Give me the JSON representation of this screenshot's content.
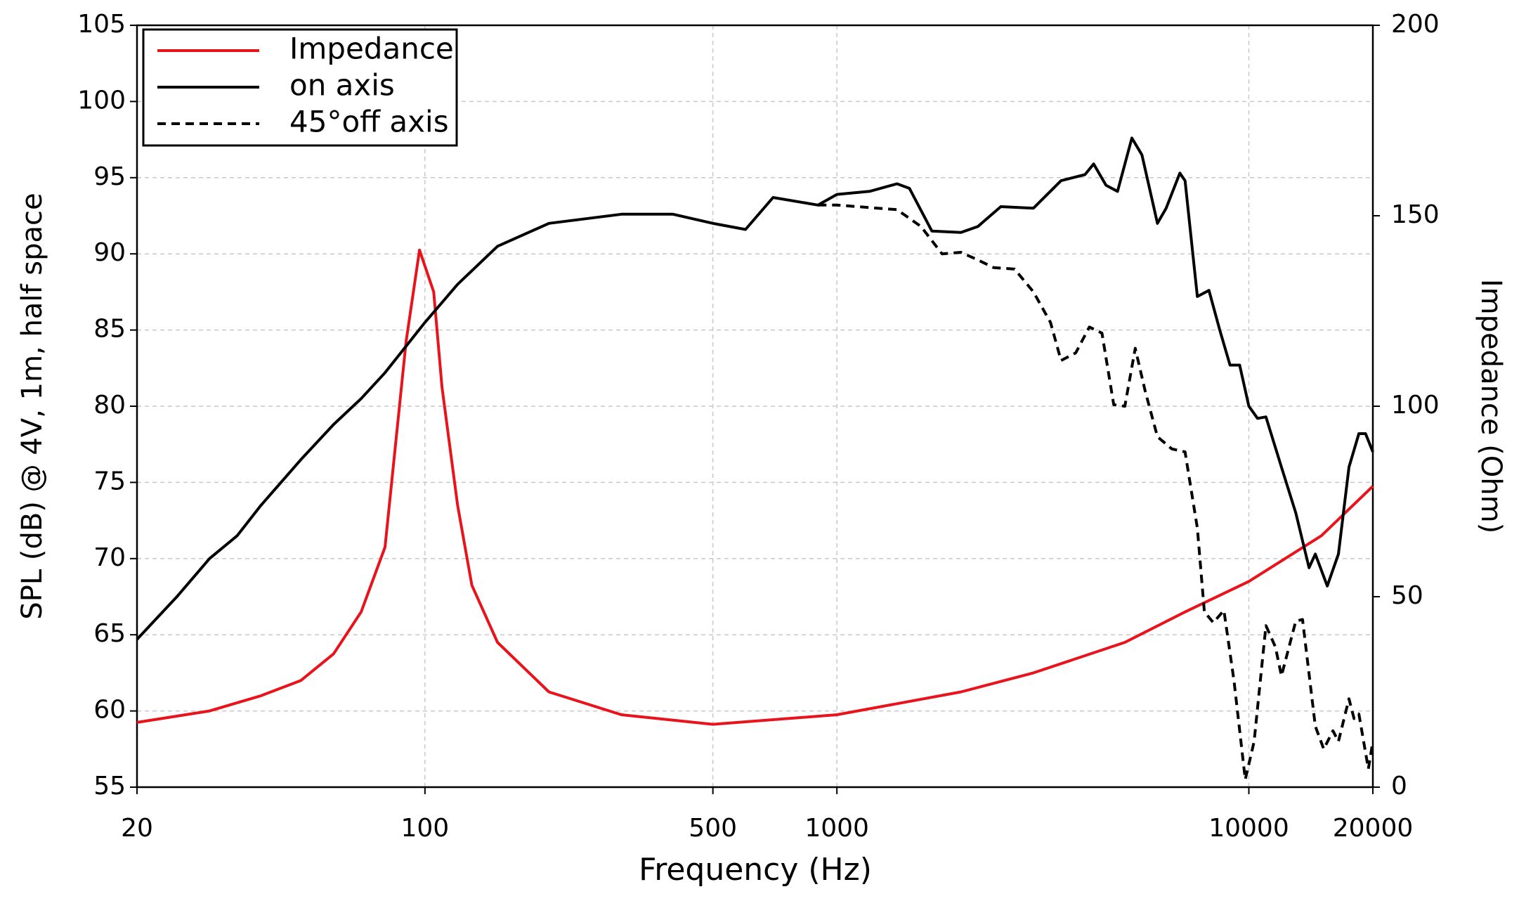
{
  "chart_data": {
    "type": "line",
    "x_label": "Frequency (Hz)",
    "y_label": "SPL (dB) @ 4V, 1m, half space",
    "y2_label": "Impedance (Ohm)",
    "xscale": "log",
    "xlim": [
      20,
      20000
    ],
    "xticks": [
      20,
      100,
      500,
      1000,
      10000,
      20000
    ],
    "ylim": [
      55,
      105
    ],
    "yticks": [
      55,
      60,
      65,
      70,
      75,
      80,
      85,
      90,
      95,
      100,
      105
    ],
    "y2lim": [
      0,
      200
    ],
    "y2ticks": [
      0,
      50,
      100,
      150,
      200
    ],
    "grid": true,
    "legend": "upper left",
    "series": [
      {
        "name": "Impedance",
        "color": "#e8131b",
        "style": "solid",
        "axis": "y2",
        "x": [
          20,
          30,
          40,
          50,
          60,
          70,
          80,
          90,
          97,
          105,
          110,
          120,
          130,
          150,
          200,
          300,
          500,
          1000,
          2000,
          3000,
          5000,
          7000,
          10000,
          15000,
          20000
        ],
        "values": [
          17,
          20,
          24,
          28,
          35,
          46,
          63,
          117,
          141,
          130,
          105,
          74,
          53,
          38,
          25,
          19,
          16.5,
          19,
          25,
          30,
          38,
          46,
          54,
          66,
          79
        ]
      },
      {
        "name": "on axis",
        "color": "#000000",
        "style": "solid",
        "x": [
          20,
          25,
          30,
          35,
          40,
          50,
          60,
          70,
          80,
          100,
          120,
          150,
          200,
          300,
          400,
          500,
          600,
          700,
          900,
          1000,
          1200,
          1400,
          1500,
          1700,
          2000,
          2200,
          2500,
          3000,
          3500,
          4000,
          4200,
          4500,
          4800,
          5200,
          5500,
          6000,
          6300,
          6800,
          7000,
          7500,
          8000,
          8500,
          9000,
          9500,
          10000,
          10500,
          11000,
          12000,
          13000,
          14000,
          14500,
          15500,
          16500,
          17500,
          18500,
          19200,
          20000
        ],
        "values": [
          64.7,
          67.5,
          70,
          71.5,
          73.5,
          76.5,
          78.8,
          80.5,
          82.2,
          85.5,
          88,
          90.5,
          92,
          92.6,
          92.6,
          92,
          91.6,
          93.7,
          93.2,
          93.9,
          94.1,
          94.6,
          94.3,
          91.5,
          91.4,
          91.8,
          93.1,
          93,
          94.8,
          95.2,
          95.9,
          94.5,
          94.1,
          97.6,
          96.5,
          92,
          93,
          95.3,
          94.8,
          87.2,
          87.6,
          85,
          82.7,
          82.7,
          80,
          79.2,
          79.3,
          76,
          73,
          69.4,
          70.3,
          68.2,
          70.3,
          76,
          78.2,
          78.2,
          77
        ]
      },
      {
        "name": "45°off axis",
        "color": "#000000",
        "style": "dashed",
        "x": [
          900,
          1000,
          1400,
          1600,
          1800,
          2000,
          2200,
          2400,
          2700,
          3000,
          3300,
          3500,
          3800,
          4100,
          4400,
          4700,
          5000,
          5300,
          5600,
          6000,
          6500,
          7000,
          7500,
          7800,
          8200,
          8700,
          9200,
          9800,
          10300,
          11000,
          11600,
          12000,
          13000,
          13500,
          14500,
          15200,
          16000,
          16500,
          17500,
          18000,
          18500,
          19500,
          20000
        ],
        "values": [
          93.2,
          93.2,
          92.9,
          91.8,
          90,
          90.1,
          89.6,
          89.1,
          89,
          87.5,
          85.5,
          83,
          83.5,
          85.2,
          84.8,
          80.1,
          80,
          83.8,
          81,
          78,
          77.2,
          77,
          72,
          66.5,
          65.8,
          66.6,
          62,
          55.5,
          58,
          65.6,
          64.2,
          62.3,
          65.9,
          66,
          59,
          57.5,
          58.7,
          58,
          60.8,
          59.5,
          59.8,
          56.2,
          58
        ]
      }
    ]
  }
}
